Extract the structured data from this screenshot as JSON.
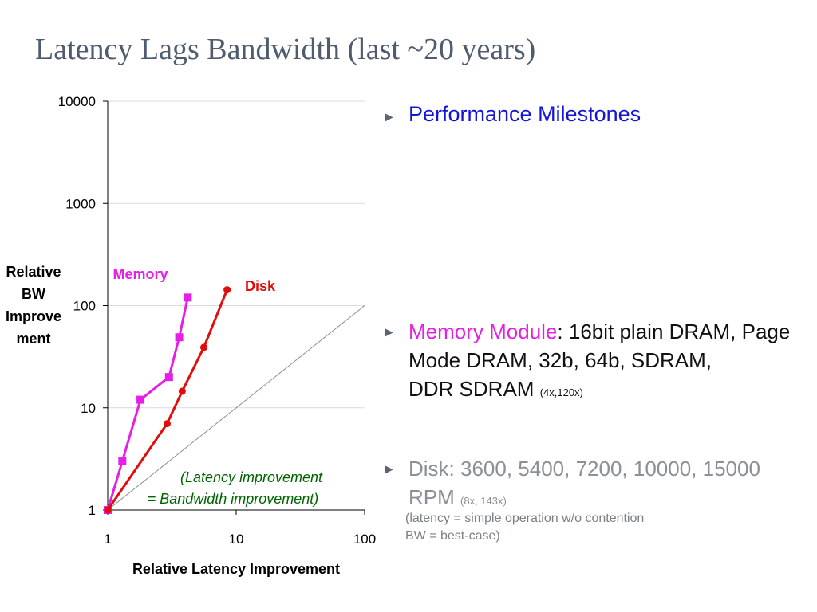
{
  "slide": {
    "title": "Latency Lags Bandwidth (last ~20 years)"
  },
  "bullets": {
    "performance": "Performance Milestones",
    "memory_key": "Memory Module",
    "memory_colon": ":",
    "memory_text": " 16bit plain DRAM, Page Mode DRAM, 32b, 64b, SDRAM,",
    "memory_last": "DDR SDRAM",
    "memory_small": "(4x,120x)",
    "disk_text": "Disk: 3600, 5400, 7200, 10000, 15000 RPM",
    "disk_small": "(8x, 143x)",
    "note_line1": "(latency = simple operation w/o contention",
    "note_line2": "BW = best-case)"
  },
  "colors": {
    "memory": "#e61ee6",
    "disk": "#e30c0c",
    "reference": "#8c8c8c",
    "performance_text": "#1515d8",
    "title": "#4f5b6f"
  },
  "chart_data": {
    "type": "line",
    "xscale": "log",
    "yscale": "log",
    "xlim": [
      1,
      100
    ],
    "ylim": [
      1,
      10000
    ],
    "xticks": [
      "1",
      "10",
      "100"
    ],
    "yticks": [
      "1",
      "10",
      "100",
      "1000",
      "10000"
    ],
    "xlabel": "Relative Latency Improvement",
    "ylabel": [
      "Relative",
      "BW",
      "Improve",
      "ment"
    ],
    "grid": "horizontal",
    "series": [
      {
        "name": "Memory",
        "marker": "square",
        "color": "#e61ee6",
        "x": [
          1,
          1.3,
          1.8,
          3.0,
          3.6,
          4.2
        ],
        "y": [
          1,
          3,
          12,
          20,
          49,
          120
        ]
      },
      {
        "name": "Disk",
        "marker": "circle",
        "color": "#e30c0c",
        "x": [
          1,
          2.9,
          3.8,
          5.6,
          8.5
        ],
        "y": [
          1,
          7,
          14.5,
          39,
          143
        ]
      }
    ],
    "reference_line": {
      "x": [
        1,
        100
      ],
      "y": [
        1,
        100
      ],
      "annotation": [
        "(Latency improvement",
        "= Bandwidth improvement)"
      ]
    }
  }
}
